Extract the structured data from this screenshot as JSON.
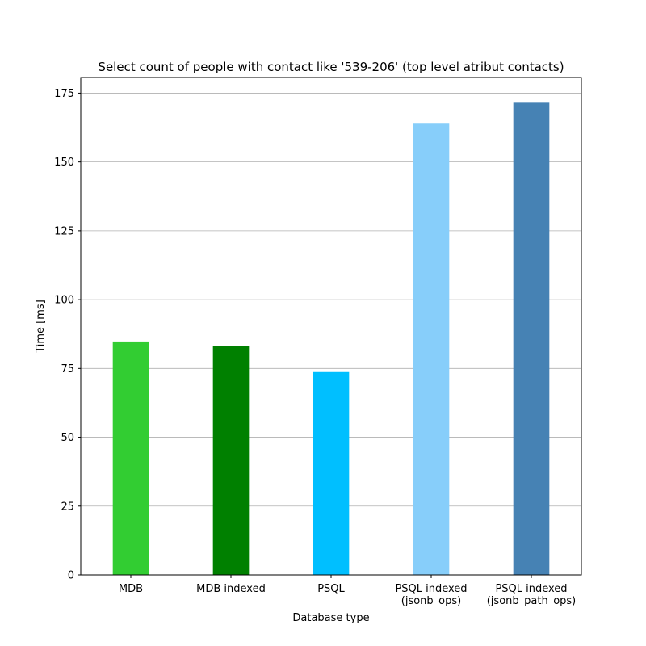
{
  "chart_data": {
    "type": "bar",
    "title": "Select count of people with contact like '539-206' (top level atribut contacts)",
    "xlabel": "Database type",
    "ylabel": "Time [ms]",
    "categories": [
      [
        "MDB"
      ],
      [
        "MDB indexed"
      ],
      [
        "PSQL"
      ],
      [
        "PSQL indexed",
        "(jsonb_ops)"
      ],
      [
        "PSQL indexed",
        "(jsonb_path_ops)"
      ]
    ],
    "values": [
      84.8,
      83.3,
      73.7,
      164.2,
      171.8
    ],
    "colors": [
      "#32cd32",
      "#008000",
      "#00bfff",
      "#87cefa",
      "#4682b4"
    ],
    "ylim": [
      0,
      180.7
    ],
    "yticks": [
      0,
      25,
      50,
      75,
      100,
      125,
      150,
      175
    ],
    "grid": "y"
  }
}
